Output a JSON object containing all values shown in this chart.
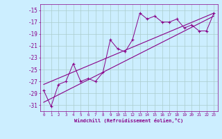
{
  "x": [
    0,
    1,
    2,
    3,
    4,
    5,
    6,
    7,
    8,
    9,
    10,
    11,
    12,
    13,
    14,
    15,
    16,
    17,
    18,
    19,
    20,
    21,
    22,
    23
  ],
  "y_scatter": [
    -28.5,
    -31.2,
    -27.5,
    -27.0,
    -24.0,
    -27.0,
    -26.5,
    -27.0,
    -25.5,
    -20.0,
    -21.5,
    -22.0,
    -20.0,
    -15.5,
    -16.5,
    -16.0,
    -17.0,
    -17.0,
    -16.5,
    -18.0,
    -17.5,
    -18.5,
    -18.5,
    -15.5
  ],
  "trend1_x": [
    0,
    23
  ],
  "trend1_y": [
    -30.5,
    -16.0
  ],
  "trend2_x": [
    0,
    23
  ],
  "trend2_y": [
    -27.5,
    -15.5
  ],
  "xlim": [
    -0.5,
    23.5
  ],
  "ylim": [
    -32,
    -14
  ],
  "yticks": [
    -31,
    -29,
    -27,
    -25,
    -23,
    -21,
    -19,
    -17,
    -15
  ],
  "xtick_labels": [
    "0",
    "1",
    "2",
    "3",
    "4",
    "5",
    "6",
    "7",
    "8",
    "9",
    "10",
    "11",
    "12",
    "13",
    "14",
    "15",
    "16",
    "17",
    "18",
    "19",
    "20",
    "21",
    "22",
    "23"
  ],
  "xlabel": "Windchill (Refroidissement éolien,°C)",
  "line_color": "#880088",
  "bg_color": "#cceeff",
  "grid_color": "#aacccc",
  "title": ""
}
